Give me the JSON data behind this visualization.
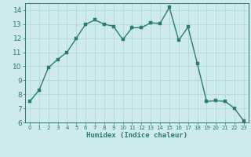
{
  "x": [
    0,
    1,
    2,
    3,
    4,
    5,
    6,
    7,
    8,
    9,
    10,
    11,
    12,
    13,
    14,
    15,
    16,
    17,
    18,
    19,
    20,
    21,
    22,
    23
  ],
  "y": [
    7.5,
    8.3,
    9.9,
    10.5,
    11.0,
    12.0,
    13.0,
    13.3,
    13.0,
    12.85,
    11.9,
    12.75,
    12.75,
    13.1,
    13.05,
    14.2,
    11.85,
    12.8,
    10.2,
    7.5,
    7.55,
    7.5,
    7.0,
    6.1
  ],
  "title": "",
  "xlabel": "Humidex (Indice chaleur)",
  "ylabel": "",
  "xlim": [
    -0.5,
    23.5
  ],
  "ylim": [
    6,
    14.5
  ],
  "yticks": [
    6,
    7,
    8,
    9,
    10,
    11,
    12,
    13,
    14
  ],
  "xticks": [
    0,
    1,
    2,
    3,
    4,
    5,
    6,
    7,
    8,
    9,
    10,
    11,
    12,
    13,
    14,
    15,
    16,
    17,
    18,
    19,
    20,
    21,
    22,
    23
  ],
  "line_color": "#2a7d6b",
  "marker_color": "#2a7d6b",
  "bg_color": "#ceeaea",
  "grid_color": "#b2d8d8",
  "axis_color": "#2a7d6b",
  "tick_label_color": "#2a7d6b",
  "xlabel_color": "#2a7d6b",
  "line_width": 1.0,
  "marker_size": 2.5
}
